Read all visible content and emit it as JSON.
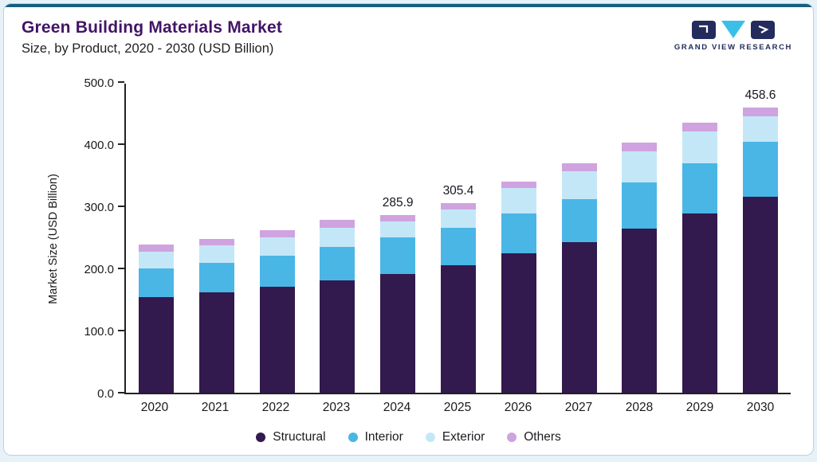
{
  "header": {
    "title": "Green Building Materials Market",
    "subtitle": "Size, by Product, 2020 - 2030 (USD Billion)",
    "logo_text": "GRAND VIEW RESEARCH"
  },
  "colors": {
    "title": "#421466",
    "top_accent": "#175e7e",
    "card_border": "#b3d4e6",
    "axis": "#222222",
    "logo_navy": "#232c5c",
    "logo_cyan": "#3ac0e8"
  },
  "chart_data": {
    "type": "bar",
    "stacked": true,
    "title": "Green Building Materials Market Size, by Product, 2020 - 2030 (USD Billion)",
    "xlabel": "",
    "ylabel": "Market Size (USD Billion)",
    "ylim": [
      0,
      500
    ],
    "ytick_labels": [
      "0.0",
      "100.0",
      "200.0",
      "300.0",
      "400.0",
      "500.0"
    ],
    "grid": false,
    "legend_position": "bottom",
    "categories": [
      "2020",
      "2021",
      "2022",
      "2023",
      "2024",
      "2025",
      "2026",
      "2027",
      "2028",
      "2029",
      "2030"
    ],
    "series": [
      {
        "name": "Structural",
        "color": "#32194E",
        "values": [
          154,
          161,
          170,
          181,
          191,
          205,
          224,
          242,
          264,
          288,
          316
        ]
      },
      {
        "name": "Interior",
        "color": "#4AB6E6",
        "values": [
          46,
          48,
          51,
          54,
          59,
          61,
          64,
          69,
          74,
          81,
          88
        ]
      },
      {
        "name": "Exterior",
        "color": "#C4E7F8",
        "values": [
          27,
          28,
          29,
          31,
          26,
          28.4,
          41,
          46,
          51,
          52,
          41
        ]
      },
      {
        "name": "Others",
        "color": "#CEA3DF",
        "values": [
          11,
          11,
          12,
          12,
          9.9,
          11,
          11,
          12,
          13,
          14,
          13.6
        ]
      }
    ],
    "totals": [
      238,
      248,
      262,
      278,
      285.9,
      305.4,
      340,
      369,
      402,
      435,
      458.6
    ],
    "annotations": [
      {
        "category": "2024",
        "text": "285.9"
      },
      {
        "category": "2025",
        "text": "305.4"
      },
      {
        "category": "2030",
        "text": "458.6"
      }
    ]
  }
}
